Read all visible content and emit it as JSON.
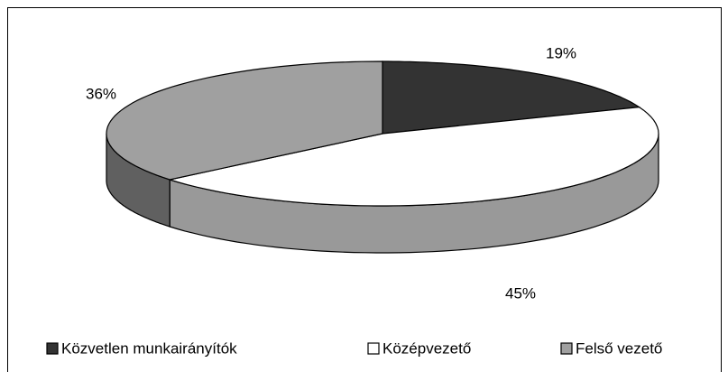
{
  "chart_data": {
    "type": "pie",
    "categories": [
      "Közvetlen munkairányítók",
      "Középvezető",
      "Felső vezető"
    ],
    "values": [
      19,
      45,
      36
    ],
    "value_labels": [
      "19%",
      "45%",
      "36%"
    ],
    "colors": [
      "#333333",
      "#ffffff",
      "#a0a0a0"
    ],
    "legend": "bottom"
  }
}
